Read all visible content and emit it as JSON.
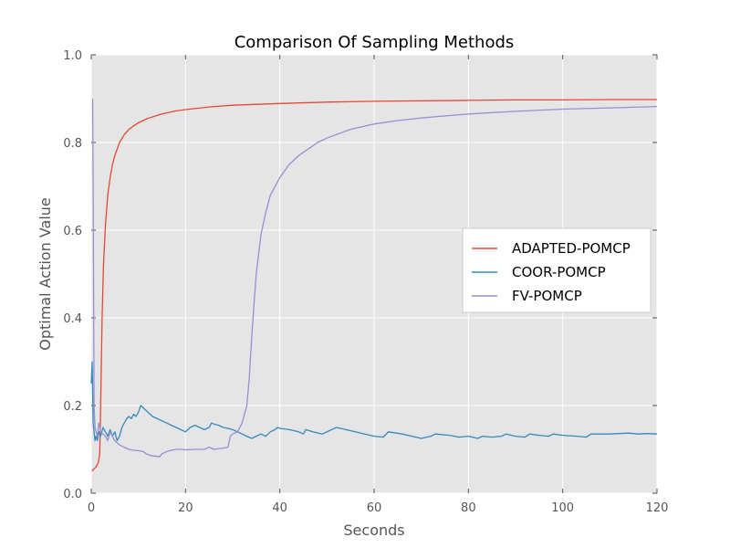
{
  "chart_data": {
    "type": "line",
    "title": "Comparison Of Sampling Methods",
    "xlabel": "Seconds",
    "ylabel": "Optimal Action Value",
    "xlim": [
      0,
      120
    ],
    "ylim": [
      0,
      1.0
    ],
    "xticks": [
      0,
      20,
      40,
      60,
      80,
      100,
      120
    ],
    "yticks": [
      0.0,
      0.2,
      0.4,
      0.6,
      0.8,
      1.0
    ],
    "xtick_labels": [
      "0",
      "20",
      "40",
      "60",
      "80",
      "100",
      "120"
    ],
    "ytick_labels": [
      "0.0",
      "0.2",
      "0.4",
      "0.6",
      "0.8",
      "1.0"
    ],
    "grid": true,
    "legend_position": "center-right",
    "background_color": "#e5e5e5",
    "series": [
      {
        "name": "ADAPTED-POMCP",
        "color": "#e24a33",
        "x": [
          0.2,
          0.5,
          1.0,
          1.5,
          1.8,
          2.0,
          2.3,
          2.6,
          3.0,
          3.5,
          4.0,
          4.5,
          5.0,
          6.0,
          7.0,
          8.0,
          9.0,
          10.0,
          12.0,
          15.0,
          18.0,
          20.0,
          25.0,
          30.0,
          40.0,
          50.0,
          60.0,
          70.0,
          80.0,
          90.0,
          100.0,
          110.0,
          120.0
        ],
        "y": [
          0.05,
          0.055,
          0.06,
          0.07,
          0.09,
          0.2,
          0.4,
          0.52,
          0.61,
          0.68,
          0.72,
          0.75,
          0.77,
          0.8,
          0.818,
          0.83,
          0.838,
          0.845,
          0.855,
          0.865,
          0.872,
          0.875,
          0.881,
          0.885,
          0.889,
          0.892,
          0.894,
          0.895,
          0.896,
          0.897,
          0.897,
          0.898,
          0.898
        ]
      },
      {
        "name": "COOR-POMCP",
        "color": "#348abd",
        "x": [
          0.0,
          0.2,
          0.4,
          0.6,
          0.8,
          1.0,
          1.3,
          1.6,
          2.0,
          2.5,
          3.0,
          3.5,
          4.0,
          4.5,
          5.0,
          5.5,
          6.0,
          6.5,
          7.0,
          7.5,
          8.0,
          8.5,
          9.0,
          9.5,
          10.0,
          10.5,
          11.0,
          12.0,
          13.0,
          14.0,
          15.0,
          16.0,
          17.0,
          18.0,
          19.0,
          20.0,
          20.5,
          21.0,
          22.0,
          23.0,
          24.0,
          25.0,
          25.5,
          26.0,
          27.0,
          28.0,
          29.0,
          30.0,
          31.0,
          32.0,
          33.0,
          34.0,
          35.0,
          36.0,
          37.0,
          38.0,
          39.0,
          39.5,
          40.0,
          42.0,
          44.0,
          45.0,
          45.5,
          47.0,
          49.0,
          50.0,
          51.0,
          52.0,
          54.0,
          56.0,
          58.0,
          60.0,
          62.0,
          63.0,
          66.0,
          68.0,
          70.0,
          72.0,
          73.0,
          76.0,
          78.0,
          80.0,
          82.0,
          83.0,
          85.0,
          87.0,
          88.0,
          90.0,
          92.0,
          93.0,
          95.0,
          97.0,
          98.0,
          100.0,
          103.0,
          105.0,
          106.0,
          110.0,
          114.0,
          116.0,
          118.0,
          120.0
        ],
        "y": [
          0.25,
          0.3,
          0.16,
          0.14,
          0.12,
          0.13,
          0.12,
          0.14,
          0.13,
          0.15,
          0.14,
          0.13,
          0.145,
          0.13,
          0.14,
          0.12,
          0.13,
          0.15,
          0.16,
          0.17,
          0.175,
          0.17,
          0.18,
          0.175,
          0.185,
          0.2,
          0.195,
          0.185,
          0.175,
          0.17,
          0.165,
          0.16,
          0.155,
          0.15,
          0.145,
          0.14,
          0.145,
          0.15,
          0.155,
          0.15,
          0.145,
          0.15,
          0.16,
          0.158,
          0.155,
          0.15,
          0.148,
          0.145,
          0.14,
          0.135,
          0.13,
          0.125,
          0.13,
          0.135,
          0.13,
          0.14,
          0.145,
          0.15,
          0.148,
          0.145,
          0.14,
          0.135,
          0.145,
          0.14,
          0.135,
          0.14,
          0.145,
          0.15,
          0.145,
          0.14,
          0.135,
          0.13,
          0.128,
          0.14,
          0.135,
          0.13,
          0.125,
          0.13,
          0.135,
          0.132,
          0.128,
          0.13,
          0.125,
          0.13,
          0.128,
          0.13,
          0.135,
          0.13,
          0.128,
          0.135,
          0.132,
          0.13,
          0.135,
          0.132,
          0.13,
          0.128,
          0.135,
          0.135,
          0.137,
          0.135,
          0.136,
          0.135
        ]
      },
      {
        "name": "FV-POMCP",
        "color": "#988ed5",
        "x": [
          0.3,
          0.4,
          0.6,
          0.8,
          1.0,
          1.3,
          1.6,
          2.0,
          2.5,
          3.0,
          3.5,
          4.0,
          5.0,
          6.0,
          7.0,
          8.0,
          9.0,
          10.0,
          11.0,
          12.0,
          13.0,
          14.0,
          14.5,
          15.0,
          16.0,
          17.0,
          18.0,
          19.0,
          20.0,
          22.0,
          24.0,
          25.0,
          26.0,
          28.0,
          29.0,
          29.5,
          30.0,
          31.0,
          32.0,
          32.5,
          33.0,
          33.5,
          34.0,
          34.5,
          35.0,
          36.0,
          37.0,
          38.0,
          39.0,
          40.0,
          42.0,
          44.0,
          46.0,
          48.0,
          50.0,
          55.0,
          60.0,
          65.0,
          70.0,
          80.0,
          90.0,
          100.0,
          110.0,
          120.0
        ],
        "y": [
          0.9,
          0.7,
          0.2,
          0.15,
          0.14,
          0.13,
          0.16,
          0.14,
          0.135,
          0.13,
          0.12,
          0.14,
          0.12,
          0.11,
          0.105,
          0.1,
          0.098,
          0.097,
          0.095,
          0.088,
          0.085,
          0.084,
          0.083,
          0.09,
          0.095,
          0.098,
          0.1,
          0.1,
          0.099,
          0.1,
          0.1,
          0.105,
          0.1,
          0.103,
          0.105,
          0.13,
          0.135,
          0.14,
          0.16,
          0.18,
          0.2,
          0.26,
          0.35,
          0.43,
          0.5,
          0.59,
          0.64,
          0.68,
          0.7,
          0.72,
          0.75,
          0.77,
          0.785,
          0.8,
          0.81,
          0.83,
          0.842,
          0.85,
          0.856,
          0.865,
          0.871,
          0.876,
          0.879,
          0.882
        ]
      }
    ]
  }
}
